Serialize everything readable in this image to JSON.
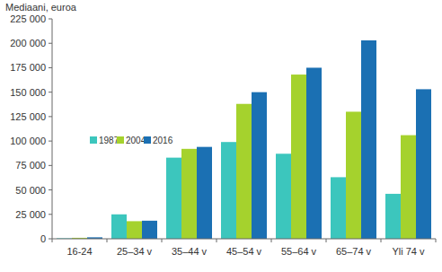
{
  "chart_data": {
    "type": "bar",
    "ylabel": "Mediaani, euroa",
    "categories": [
      "16-24",
      "25–34 v",
      "35–44 v",
      "45–54 v",
      "55–64 v",
      "65–74 v",
      "Yli 74 v"
    ],
    "series": [
      {
        "name": "1987",
        "color": "#3cc6bd",
        "values": [
          500,
          25000,
          83000,
          99000,
          87000,
          63000,
          46000
        ]
      },
      {
        "name": "2004",
        "color": "#a5d22d",
        "values": [
          1000,
          18000,
          92000,
          138000,
          168000,
          130000,
          106000
        ]
      },
      {
        "name": "2016",
        "color": "#1b70b3",
        "values": [
          1500,
          18500,
          94000,
          150000,
          175000,
          203000,
          153000
        ]
      }
    ],
    "ylim": [
      0,
      225000
    ],
    "yticks": [
      0,
      {
        "value": 25000,
        "label": "25 000"
      },
      {
        "value": 50000,
        "label": "50 000"
      },
      {
        "value": 75000,
        "label": "75 000"
      },
      {
        "value": 100000,
        "label": "100 000"
      },
      {
        "value": 125000,
        "label": "125 000"
      },
      {
        "value": 150000,
        "label": "150 000"
      },
      {
        "value": 175000,
        "label": "175 000"
      },
      {
        "value": 200000,
        "label": "200 000"
      },
      {
        "value": 225000,
        "label": "225 000"
      }
    ],
    "grid": false,
    "legend": "left"
  }
}
